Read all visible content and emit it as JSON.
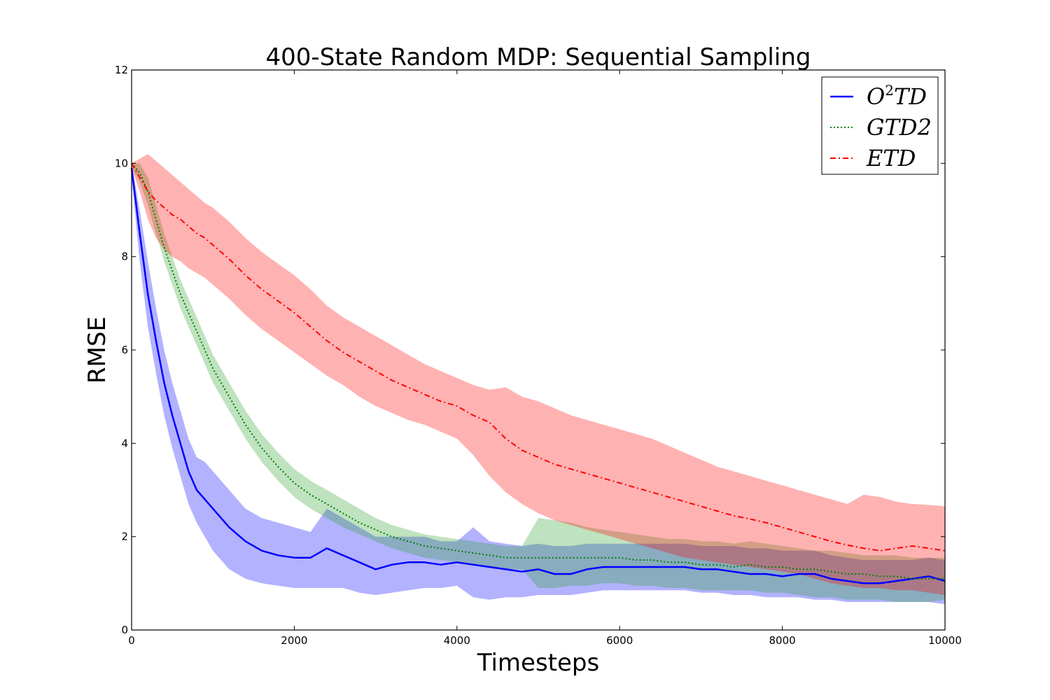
{
  "chart_data": {
    "type": "line",
    "title": "400-State Random MDP: Sequential Sampling",
    "xlabel": "Timesteps",
    "ylabel": "RMSE",
    "xlim": [
      0,
      10000
    ],
    "ylim": [
      0,
      12
    ],
    "xticks": [
      0,
      2000,
      4000,
      6000,
      8000,
      10000
    ],
    "yticks": [
      0,
      2,
      4,
      6,
      8,
      10,
      12
    ],
    "xtick_labels": [
      "0",
      "2000",
      "4000",
      "6000",
      "8000",
      "10000"
    ],
    "ytick_labels": [
      "0",
      "2",
      "4",
      "6",
      "8",
      "10",
      "12"
    ],
    "legend": {
      "placement": "top-right"
    },
    "x": [
      0,
      100,
      200,
      300,
      400,
      500,
      600,
      700,
      800,
      900,
      1000,
      1200,
      1400,
      1600,
      1800,
      2000,
      2200,
      2400,
      2600,
      2800,
      3000,
      3200,
      3400,
      3600,
      3800,
      4000,
      4200,
      4400,
      4600,
      4800,
      5000,
      5200,
      5400,
      5600,
      5800,
      6000,
      6200,
      6400,
      6600,
      6800,
      7000,
      7200,
      7400,
      7600,
      7800,
      8000,
      8200,
      8400,
      8600,
      8800,
      9000,
      9200,
      9400,
      9600,
      9800,
      10000
    ],
    "series": [
      {
        "name": "O²TD",
        "label_base": "O",
        "label_sup": "2",
        "label_rest": "TD",
        "color": "#0000ff",
        "fill": "#0000ff",
        "style": "solid",
        "values": [
          9.9,
          8.5,
          7.2,
          6.2,
          5.3,
          4.6,
          4.0,
          3.4,
          3.0,
          2.8,
          2.6,
          2.2,
          1.9,
          1.7,
          1.6,
          1.55,
          1.55,
          1.75,
          1.6,
          1.45,
          1.3,
          1.4,
          1.45,
          1.45,
          1.4,
          1.45,
          1.4,
          1.35,
          1.3,
          1.25,
          1.3,
          1.2,
          1.2,
          1.3,
          1.35,
          1.35,
          1.35,
          1.35,
          1.35,
          1.35,
          1.3,
          1.3,
          1.25,
          1.2,
          1.2,
          1.15,
          1.2,
          1.2,
          1.1,
          1.05,
          1.0,
          1.0,
          1.05,
          1.1,
          1.15,
          1.05
        ],
        "lower": [
          9.7,
          7.9,
          6.5,
          5.5,
          4.6,
          3.9,
          3.3,
          2.7,
          2.3,
          2.0,
          1.7,
          1.3,
          1.1,
          1.0,
          0.95,
          0.9,
          0.9,
          0.9,
          0.9,
          0.8,
          0.75,
          0.8,
          0.85,
          0.9,
          0.9,
          0.95,
          0.7,
          0.65,
          0.7,
          0.7,
          0.75,
          0.75,
          0.75,
          0.8,
          0.85,
          0.85,
          0.85,
          0.85,
          0.85,
          0.85,
          0.8,
          0.8,
          0.75,
          0.75,
          0.7,
          0.7,
          0.7,
          0.65,
          0.65,
          0.6,
          0.6,
          0.6,
          0.6,
          0.6,
          0.6,
          0.55
        ],
        "upper": [
          10.0,
          9.0,
          7.9,
          6.9,
          6.0,
          5.3,
          4.7,
          4.1,
          3.7,
          3.6,
          3.4,
          3.0,
          2.6,
          2.4,
          2.3,
          2.2,
          2.1,
          2.6,
          2.4,
          2.2,
          2.0,
          2.0,
          2.0,
          2.0,
          1.9,
          1.9,
          2.2,
          1.9,
          1.85,
          1.8,
          1.85,
          1.8,
          1.8,
          1.85,
          1.85,
          1.85,
          1.85,
          1.85,
          1.85,
          1.85,
          1.8,
          1.8,
          1.8,
          1.75,
          1.75,
          1.7,
          1.7,
          1.7,
          1.6,
          1.55,
          1.5,
          1.5,
          1.5,
          1.5,
          1.55,
          1.5
        ]
      },
      {
        "name": "GTD2",
        "label_base": "GTD2",
        "color": "#007f00",
        "fill": "#2ca02c",
        "style": "dotted",
        "values": [
          10.0,
          9.8,
          9.4,
          8.8,
          8.2,
          7.7,
          7.2,
          6.8,
          6.4,
          6.0,
          5.6,
          5.0,
          4.4,
          3.9,
          3.5,
          3.15,
          2.9,
          2.7,
          2.5,
          2.3,
          2.15,
          2.0,
          1.9,
          1.8,
          1.75,
          1.7,
          1.65,
          1.6,
          1.55,
          1.55,
          1.55,
          1.55,
          1.55,
          1.55,
          1.55,
          1.55,
          1.5,
          1.5,
          1.45,
          1.45,
          1.4,
          1.4,
          1.35,
          1.4,
          1.35,
          1.35,
          1.3,
          1.3,
          1.25,
          1.2,
          1.2,
          1.15,
          1.15,
          1.1,
          1.1,
          1.1
        ],
        "lower": [
          9.9,
          9.6,
          9.1,
          8.5,
          7.9,
          7.4,
          6.9,
          6.5,
          6.1,
          5.7,
          5.3,
          4.7,
          4.1,
          3.6,
          3.2,
          2.85,
          2.6,
          2.4,
          2.2,
          2.05,
          1.9,
          1.75,
          1.65,
          1.55,
          1.5,
          1.45,
          1.4,
          1.35,
          1.3,
          1.3,
          0.9,
          0.9,
          0.95,
          0.95,
          1.0,
          1.0,
          0.95,
          0.95,
          0.9,
          0.9,
          0.85,
          0.85,
          0.85,
          0.85,
          0.8,
          0.8,
          0.75,
          0.7,
          0.7,
          0.65,
          0.65,
          0.65,
          0.6,
          0.6,
          0.6,
          0.65
        ],
        "upper": [
          10.0,
          10.0,
          9.7,
          9.1,
          8.5,
          8.0,
          7.5,
          7.1,
          6.7,
          6.3,
          5.9,
          5.3,
          4.7,
          4.2,
          3.8,
          3.45,
          3.2,
          3.0,
          2.8,
          2.6,
          2.4,
          2.25,
          2.15,
          2.05,
          2.0,
          1.95,
          1.9,
          1.85,
          1.8,
          1.8,
          2.4,
          2.35,
          2.3,
          2.2,
          2.15,
          2.1,
          2.05,
          2.0,
          1.95,
          1.95,
          1.9,
          1.9,
          1.85,
          1.9,
          1.85,
          1.8,
          1.75,
          1.7,
          1.7,
          1.65,
          1.6,
          1.6,
          1.6,
          1.55,
          1.55,
          1.55
        ]
      },
      {
        "name": "ETD",
        "label_base": "ETD",
        "color": "#ff0000",
        "fill": "#ff0000",
        "style": "dashdot",
        "values": [
          10.0,
          9.7,
          9.4,
          9.2,
          9.05,
          8.9,
          8.8,
          8.65,
          8.5,
          8.4,
          8.25,
          7.95,
          7.6,
          7.3,
          7.05,
          6.8,
          6.5,
          6.2,
          5.95,
          5.75,
          5.55,
          5.35,
          5.2,
          5.05,
          4.9,
          4.8,
          4.6,
          4.45,
          4.1,
          3.85,
          3.7,
          3.55,
          3.45,
          3.35,
          3.25,
          3.15,
          3.05,
          2.95,
          2.85,
          2.75,
          2.65,
          2.55,
          2.45,
          2.38,
          2.3,
          2.2,
          2.1,
          2.0,
          1.9,
          1.82,
          1.75,
          1.7,
          1.75,
          1.8,
          1.75,
          1.7
        ],
        "lower": [
          9.9,
          9.4,
          8.8,
          8.4,
          8.15,
          8.0,
          7.9,
          7.75,
          7.65,
          7.55,
          7.4,
          7.1,
          6.75,
          6.45,
          6.2,
          5.95,
          5.7,
          5.45,
          5.25,
          5.0,
          4.8,
          4.65,
          4.5,
          4.4,
          4.25,
          4.1,
          3.75,
          3.3,
          2.95,
          2.7,
          2.5,
          2.35,
          2.25,
          2.15,
          2.05,
          1.95,
          1.85,
          1.75,
          1.65,
          1.55,
          1.5,
          1.45,
          1.4,
          1.35,
          1.3,
          1.25,
          1.2,
          1.1,
          1.0,
          0.95,
          0.9,
          0.9,
          0.85,
          0.85,
          0.8,
          0.75
        ],
        "upper": [
          10.0,
          10.1,
          10.2,
          10.05,
          9.9,
          9.75,
          9.6,
          9.45,
          9.3,
          9.15,
          9.05,
          8.75,
          8.4,
          8.1,
          7.85,
          7.6,
          7.3,
          6.95,
          6.7,
          6.5,
          6.3,
          6.1,
          5.9,
          5.7,
          5.55,
          5.4,
          5.25,
          5.15,
          5.2,
          5.0,
          4.9,
          4.75,
          4.6,
          4.5,
          4.4,
          4.3,
          4.2,
          4.1,
          3.95,
          3.8,
          3.65,
          3.5,
          3.4,
          3.3,
          3.2,
          3.1,
          3.0,
          2.9,
          2.8,
          2.7,
          2.9,
          2.85,
          2.75,
          2.7,
          2.68,
          2.65
        ]
      }
    ]
  }
}
